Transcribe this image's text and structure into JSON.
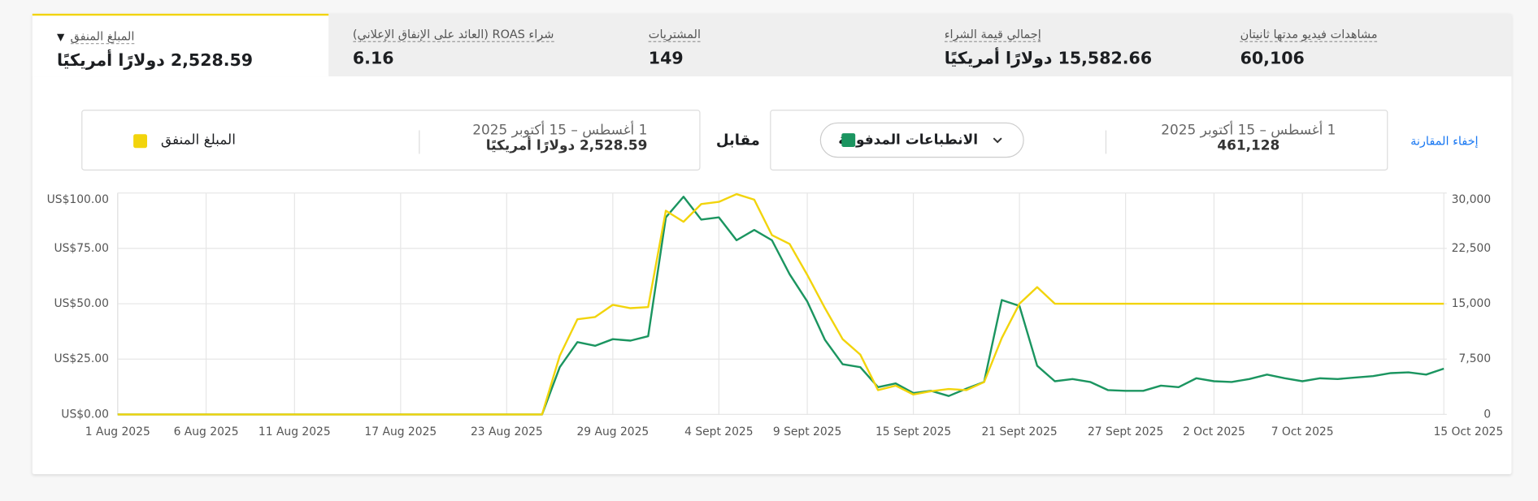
{
  "tabs": [
    {
      "label": "المبلغ المنفق",
      "value": "2,528.59 دولارًا أمريكيًا"
    },
    {
      "label": "شراء ROAS (العائد على الإنفاق الإعلاني)",
      "value": "6.16"
    },
    {
      "label": "المشتريات",
      "value": "149"
    },
    {
      "label": "إجمالي قيمة الشراء",
      "value": "15,582.66 دولارًا أمريكيًا"
    },
    {
      "label": "مشاهدات فيديو مدتها ثانيتان",
      "value": "60,106"
    }
  ],
  "comparison": {
    "left": {
      "date_range": "1 أغسطس – 15 أكتوبر 2025",
      "value": "2,528.59 دولارًا أمريكيًا"
    },
    "versus": "مقابل",
    "right": {
      "date_range": "1 أغسطس – 15 أكتوبر 2025",
      "value": "461,128"
    },
    "hide_link": "إخفاء المقارنة"
  },
  "chart_data": {
    "type": "line",
    "categories": [
      "1 Aug 2025",
      null,
      null,
      null,
      null,
      "6 Aug 2025",
      null,
      null,
      null,
      null,
      "11 Aug 2025",
      null,
      null,
      null,
      null,
      null,
      "17 Aug 2025",
      null,
      null,
      null,
      null,
      null,
      "23 Aug 2025",
      null,
      null,
      null,
      null,
      null,
      "29 Aug 2025",
      null,
      null,
      null,
      null,
      null,
      "4 Sept 2025",
      null,
      null,
      null,
      null,
      "9 Sept 2025",
      null,
      null,
      null,
      null,
      null,
      "15 Sept 2025",
      null,
      null,
      null,
      null,
      null,
      "21 Sept 2025",
      null,
      null,
      null,
      null,
      null,
      "27 Sept 2025",
      null,
      null,
      null,
      null,
      "2 Oct 2025",
      null,
      null,
      null,
      null,
      "7 Oct 2025",
      null,
      null,
      null,
      null,
      null,
      null,
      null,
      "15 Oct 2025"
    ],
    "series": [
      {
        "name": "المبلغ المنفق",
        "color": "#f2d40c",
        "values": [
          0,
          0,
          0,
          0,
          0,
          0,
          0,
          0,
          0,
          0,
          0,
          0,
          0,
          0,
          0,
          0,
          0,
          0,
          0,
          0,
          0,
          0,
          0,
          0,
          0,
          26.5,
          43,
          44,
          49.5,
          48,
          48.5,
          92,
          87,
          95,
          96,
          99.5,
          97,
          81,
          77,
          63,
          48,
          34,
          27,
          11,
          13,
          9,
          10.5,
          11.5,
          11,
          14.6,
          34.5,
          50,
          57.5,
          50,
          50,
          50,
          50,
          50,
          50,
          50,
          50,
          50,
          50,
          50,
          50,
          50,
          50,
          50,
          50,
          50,
          50,
          50,
          50,
          50,
          50,
          50
        ]
      },
      {
        "name": "الانطباعات المدفوعة",
        "color": "#1b9560",
        "axis": "y2",
        "values": [
          0,
          0,
          0,
          0,
          0,
          0,
          0,
          0,
          0,
          0,
          0,
          0,
          0,
          0,
          0,
          0,
          0,
          0,
          0,
          0,
          0,
          0,
          0,
          0,
          0,
          6400,
          9800,
          9300,
          10200,
          10000,
          10600,
          26700,
          29500,
          26400,
          26700,
          23600,
          25000,
          23600,
          19000,
          15300,
          10100,
          6800,
          6400,
          3700,
          4200,
          2900,
          3200,
          2500,
          3500,
          4400,
          15500,
          14700,
          6600,
          4500,
          4800,
          4400,
          3300,
          3200,
          3200,
          3900,
          3700,
          4900,
          4500,
          4400,
          4800,
          5400,
          4900,
          4500,
          4900,
          4800,
          5000,
          5200,
          5600,
          5700,
          5400,
          6200
        ]
      }
    ],
    "ylim": [
      0,
      100
    ],
    "yticks": [
      {
        "value": 0,
        "label": "US$0.00"
      },
      {
        "value": 25,
        "label": "US$25.00"
      },
      {
        "value": 50,
        "label": "US$50.00"
      },
      {
        "value": 75,
        "label": "US$75.00"
      },
      {
        "value": 100,
        "label": "US$100.00"
      }
    ],
    "y2lim": [
      0,
      30000
    ],
    "y2ticks": [
      0,
      {
        "value": 7500,
        "label": "7,500"
      },
      {
        "value": 15000,
        "label": "15,000"
      },
      {
        "value": 22500,
        "label": "22,500"
      },
      {
        "value": 30000,
        "label": "30,000"
      }
    ],
    "grid": true
  }
}
